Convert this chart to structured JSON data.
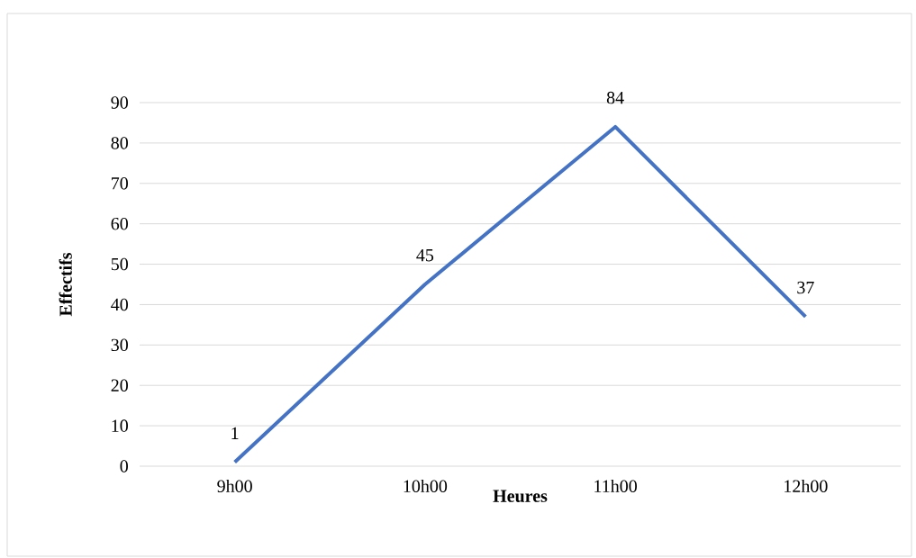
{
  "chart_data": {
    "type": "line",
    "xlabel": "Heures",
    "ylabel": "Effectifs",
    "categories": [
      "9h00",
      "10h00",
      "11h00",
      "12h00"
    ],
    "series": [
      {
        "color": "#4472c4",
        "values": [
          1,
          45,
          84,
          37
        ]
      }
    ],
    "ylim": [
      0,
      90
    ],
    "yticks": [
      0,
      10,
      20,
      30,
      40,
      50,
      60,
      70,
      80,
      90
    ],
    "grid": "y",
    "marker": "none",
    "line_style": "solid",
    "data_labels": true
  }
}
